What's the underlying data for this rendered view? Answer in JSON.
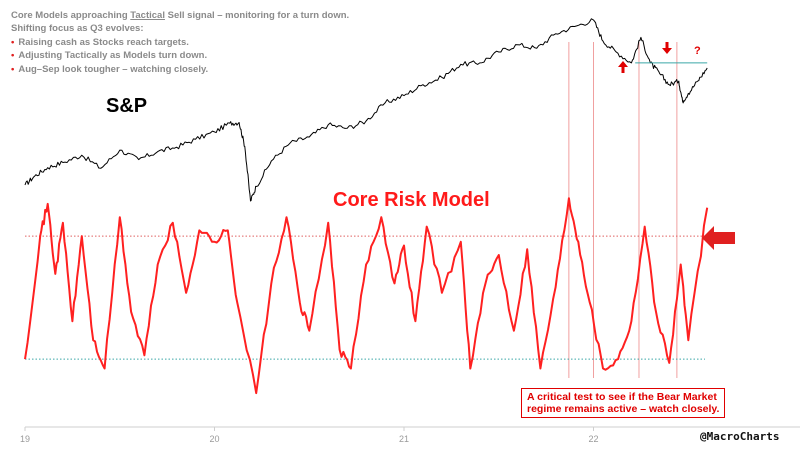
{
  "notes": {
    "line1_pre": "Core Models approaching ",
    "line1_mid": "Tactical",
    "line1_post": " Sell signal – monitoring for a turn down.",
    "line2": "Shifting focus as Q3 evolves:",
    "bullets": [
      "Raising cash as Stocks reach targets.",
      "Adjusting Tactically as Models turn down.",
      "Aug–Sep look tougher – watching closely."
    ]
  },
  "labels": {
    "sp": "S&P",
    "model": "Core Risk Model",
    "callout_line1": "A critical test to see if the Bear Market",
    "callout_line2": "regime remains active – watch closely.",
    "question": "?",
    "credit": "@MacroCharts"
  },
  "colors": {
    "sp_line": "#000000",
    "model_line": "#ff2020",
    "guide": "#f0a0a0",
    "threshold_upper": "#e06060",
    "threshold_lower": "#3aa6a6",
    "accent": "#e00000"
  },
  "chart_data": {
    "type": "line",
    "xlim": [
      2019.0,
      2023.1
    ],
    "x_ticks": [
      {
        "x": 2019.0,
        "label": "19"
      },
      {
        "x": 2020.0,
        "label": "20"
      },
      {
        "x": 2021.0,
        "label": "21"
      },
      {
        "x": 2022.0,
        "label": "22"
      }
    ],
    "guide_dates": [
      2021.87,
      2022.0,
      2022.24,
      2022.44
    ],
    "series": [
      {
        "role": "sp",
        "points": [
          [
            2019.0,
            2520
          ],
          [
            2019.05,
            2640
          ],
          [
            2019.12,
            2760
          ],
          [
            2019.2,
            2830
          ],
          [
            2019.3,
            2930
          ],
          [
            2019.4,
            2750
          ],
          [
            2019.5,
            3000
          ],
          [
            2019.6,
            2870
          ],
          [
            2019.7,
            2980
          ],
          [
            2019.8,
            3040
          ],
          [
            2019.9,
            3150
          ],
          [
            2020.0,
            3250
          ],
          [
            2020.08,
            3370
          ],
          [
            2020.13,
            3380
          ],
          [
            2020.16,
            3050
          ],
          [
            2020.19,
            2300
          ],
          [
            2020.22,
            2500
          ],
          [
            2020.3,
            2850
          ],
          [
            2020.4,
            3100
          ],
          [
            2020.5,
            3180
          ],
          [
            2020.6,
            3350
          ],
          [
            2020.7,
            3300
          ],
          [
            2020.8,
            3400
          ],
          [
            2020.9,
            3650
          ],
          [
            2021.0,
            3750
          ],
          [
            2021.1,
            3900
          ],
          [
            2021.2,
            4000
          ],
          [
            2021.3,
            4180
          ],
          [
            2021.4,
            4200
          ],
          [
            2021.5,
            4350
          ],
          [
            2021.6,
            4450
          ],
          [
            2021.7,
            4400
          ],
          [
            2021.8,
            4600
          ],
          [
            2021.9,
            4700
          ],
          [
            2022.0,
            4790
          ],
          [
            2022.05,
            4500
          ],
          [
            2022.12,
            4350
          ],
          [
            2022.2,
            4200
          ],
          [
            2022.25,
            4550
          ],
          [
            2022.3,
            4200
          ],
          [
            2022.35,
            4050
          ],
          [
            2022.4,
            3900
          ],
          [
            2022.45,
            3950
          ],
          [
            2022.47,
            3670
          ],
          [
            2022.5,
            3780
          ],
          [
            2022.55,
            3950
          ],
          [
            2022.6,
            4130
          ]
        ],
        "peak_level": 4200
      },
      {
        "role": "model",
        "upper_threshold": 0.75,
        "lower_threshold": 0.1,
        "points": [
          [
            2019.0,
            0.1
          ],
          [
            2019.08,
            0.75
          ],
          [
            2019.12,
            0.92
          ],
          [
            2019.16,
            0.55
          ],
          [
            2019.2,
            0.82
          ],
          [
            2019.25,
            0.3
          ],
          [
            2019.3,
            0.75
          ],
          [
            2019.36,
            0.2
          ],
          [
            2019.42,
            0.05
          ],
          [
            2019.5,
            0.85
          ],
          [
            2019.56,
            0.35
          ],
          [
            2019.63,
            0.12
          ],
          [
            2019.7,
            0.6
          ],
          [
            2019.78,
            0.82
          ],
          [
            2019.85,
            0.45
          ],
          [
            2019.92,
            0.78
          ],
          [
            2020.0,
            0.72
          ],
          [
            2020.07,
            0.78
          ],
          [
            2020.12,
            0.4
          ],
          [
            2020.22,
            -0.08
          ],
          [
            2020.3,
            0.5
          ],
          [
            2020.38,
            0.85
          ],
          [
            2020.45,
            0.4
          ],
          [
            2020.5,
            0.25
          ],
          [
            2020.6,
            0.82
          ],
          [
            2020.66,
            0.15
          ],
          [
            2020.72,
            0.05
          ],
          [
            2020.8,
            0.6
          ],
          [
            2020.88,
            0.85
          ],
          [
            2020.95,
            0.5
          ],
          [
            2021.0,
            0.7
          ],
          [
            2021.06,
            0.3
          ],
          [
            2021.12,
            0.8
          ],
          [
            2021.2,
            0.45
          ],
          [
            2021.3,
            0.72
          ],
          [
            2021.35,
            0.05
          ],
          [
            2021.43,
            0.5
          ],
          [
            2021.5,
            0.65
          ],
          [
            2021.58,
            0.25
          ],
          [
            2021.65,
            0.68
          ],
          [
            2021.72,
            0.05
          ],
          [
            2021.8,
            0.48
          ],
          [
            2021.87,
            0.95
          ],
          [
            2021.92,
            0.72
          ],
          [
            2021.98,
            0.4
          ],
          [
            2022.05,
            0.05
          ],
          [
            2022.13,
            0.1
          ],
          [
            2022.2,
            0.3
          ],
          [
            2022.27,
            0.8
          ],
          [
            2022.33,
            0.35
          ],
          [
            2022.4,
            0.08
          ],
          [
            2022.46,
            0.6
          ],
          [
            2022.5,
            0.2
          ],
          [
            2022.6,
            0.9
          ]
        ]
      }
    ]
  }
}
